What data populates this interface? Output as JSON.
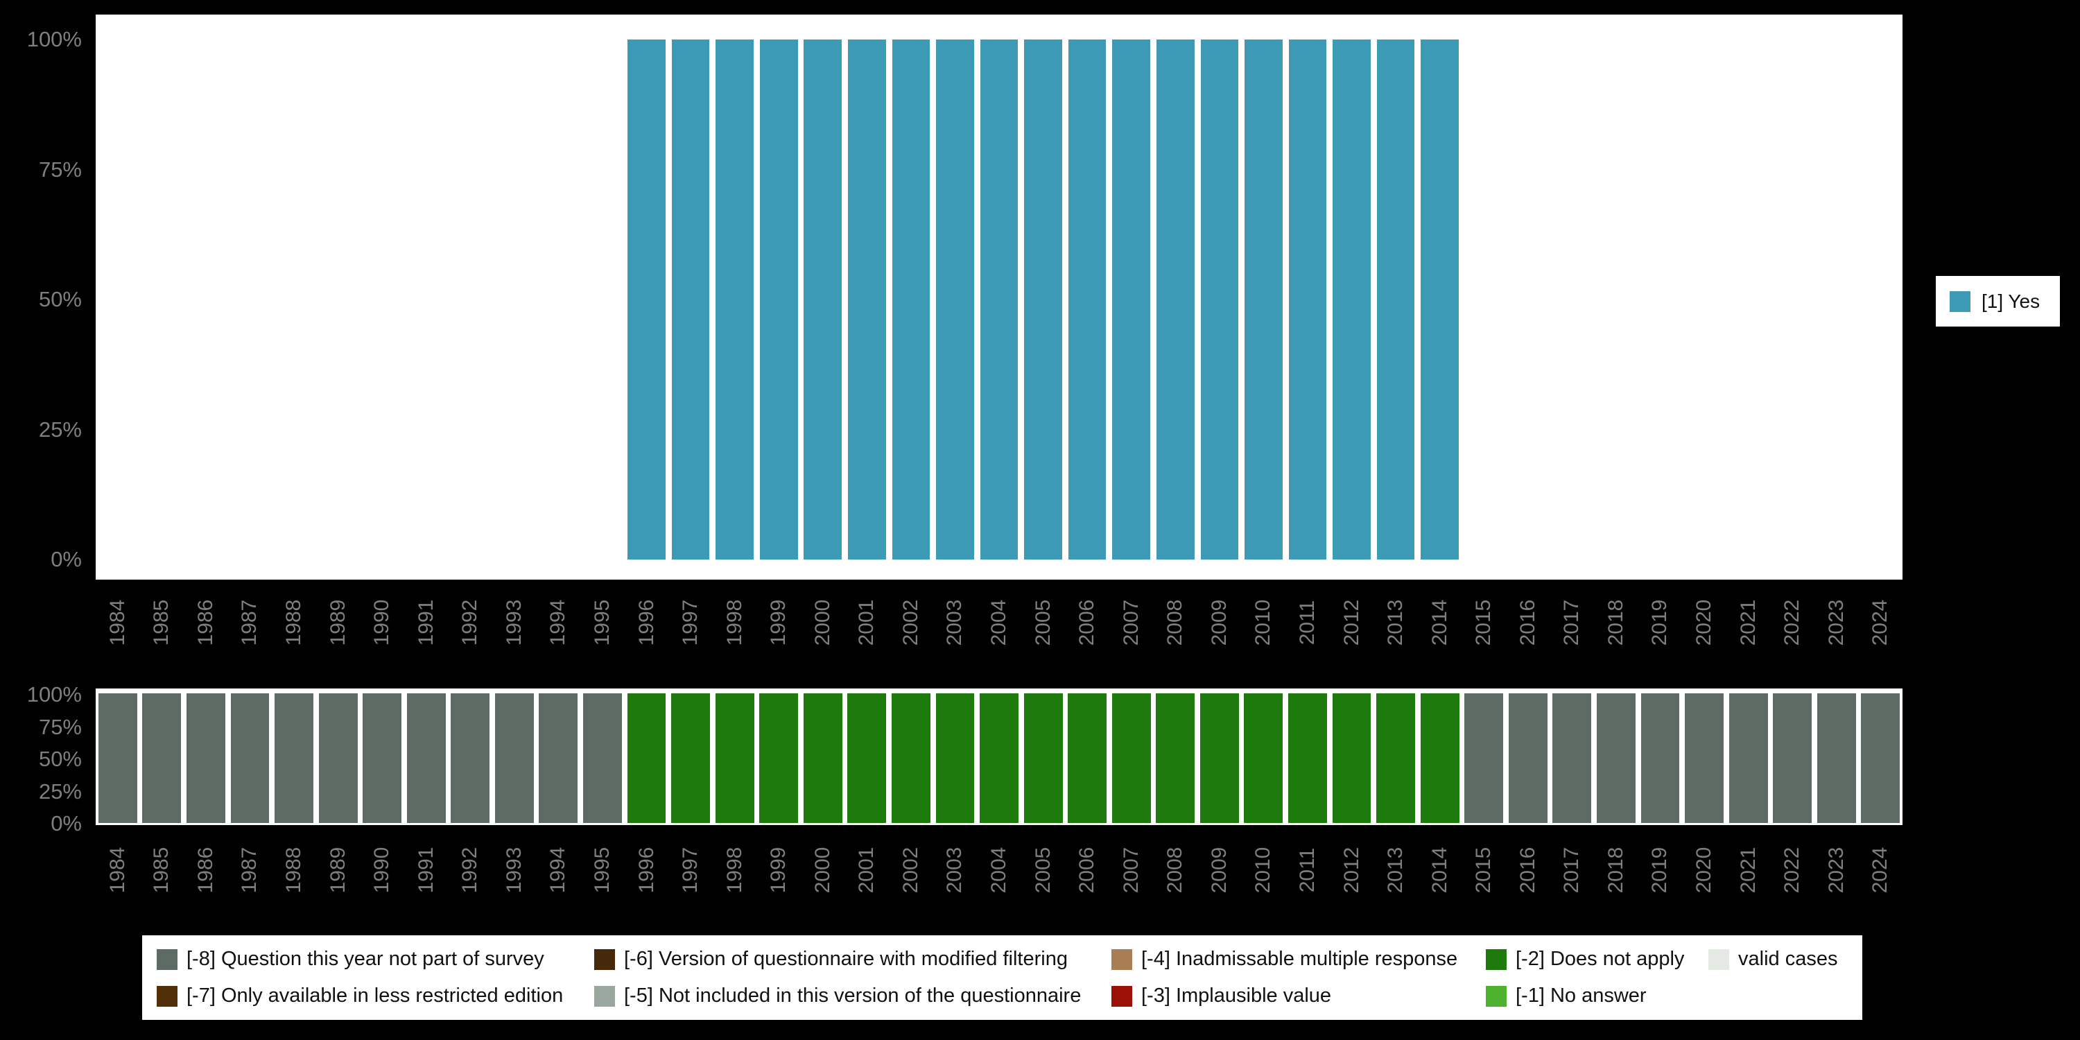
{
  "colors": {
    "background": "#000000",
    "plot_background": "#ffffff",
    "axis_text": "#7f7f7f",
    "legend_background": "#ffffff",
    "legend_text": "#111111"
  },
  "years": [
    "1984",
    "1985",
    "1986",
    "1987",
    "1988",
    "1989",
    "1990",
    "1991",
    "1992",
    "1993",
    "1994",
    "1995",
    "1996",
    "1997",
    "1998",
    "1999",
    "2000",
    "2001",
    "2002",
    "2003",
    "2004",
    "2005",
    "2006",
    "2007",
    "2008",
    "2009",
    "2010",
    "2011",
    "2012",
    "2013",
    "2014",
    "2015",
    "2016",
    "2017",
    "2018",
    "2019",
    "2020",
    "2021",
    "2022",
    "2023",
    "2024"
  ],
  "y_ticks": [
    "100%",
    "75%",
    "50%",
    "25%",
    "0%"
  ],
  "top_legend": {
    "label": "[1] Yes",
    "color": "#3d9ab7"
  },
  "chart_data": [
    {
      "type": "bar",
      "title": "",
      "xlabel": "",
      "ylabel": "",
      "ylim": [
        0,
        100
      ],
      "yticks": [
        "0%",
        "25%",
        "50%",
        "75%",
        "100%"
      ],
      "legend_position": "right",
      "categories": [
        "1984",
        "1985",
        "1986",
        "1987",
        "1988",
        "1989",
        "1990",
        "1991",
        "1992",
        "1993",
        "1994",
        "1995",
        "1996",
        "1997",
        "1998",
        "1999",
        "2000",
        "2001",
        "2002",
        "2003",
        "2004",
        "2005",
        "2006",
        "2007",
        "2008",
        "2009",
        "2010",
        "2011",
        "2012",
        "2013",
        "2014",
        "2015",
        "2016",
        "2017",
        "2018",
        "2019",
        "2020",
        "2021",
        "2022",
        "2023",
        "2024"
      ],
      "series": [
        {
          "name": "[1] Yes",
          "color": "#3d9ab7",
          "values": [
            0,
            0,
            0,
            0,
            0,
            0,
            0,
            0,
            0,
            0,
            0,
            0,
            100,
            100,
            100,
            100,
            100,
            100,
            100,
            100,
            100,
            100,
            100,
            100,
            100,
            100,
            100,
            100,
            100,
            100,
            100,
            0,
            0,
            0,
            0,
            0,
            0,
            0,
            0,
            0,
            0
          ]
        }
      ]
    },
    {
      "type": "bar",
      "title": "",
      "stacked": true,
      "xlabel": "",
      "ylabel": "",
      "ylim": [
        0,
        100
      ],
      "yticks": [
        "0%",
        "25%",
        "50%",
        "75%",
        "100%"
      ],
      "legend_position": "bottom",
      "categories": [
        "1984",
        "1985",
        "1986",
        "1987",
        "1988",
        "1989",
        "1990",
        "1991",
        "1992",
        "1993",
        "1994",
        "1995",
        "1996",
        "1997",
        "1998",
        "1999",
        "2000",
        "2001",
        "2002",
        "2003",
        "2004",
        "2005",
        "2006",
        "2007",
        "2008",
        "2009",
        "2010",
        "2011",
        "2012",
        "2013",
        "2014",
        "2015",
        "2016",
        "2017",
        "2018",
        "2019",
        "2020",
        "2021",
        "2022",
        "2023",
        "2024"
      ],
      "series": [
        {
          "name": "[-8] Question this year not part of survey",
          "color": "#5d6b64",
          "values": [
            100,
            100,
            100,
            100,
            100,
            100,
            100,
            100,
            100,
            100,
            100,
            100,
            0,
            0,
            0,
            0,
            0,
            0,
            0,
            0,
            0,
            0,
            0,
            0,
            0,
            0,
            0,
            0,
            0,
            0,
            0,
            100,
            100,
            100,
            100,
            100,
            100,
            100,
            100,
            100,
            100
          ]
        },
        {
          "name": "[-2] Does not apply",
          "color": "#1f7a0d",
          "values": [
            0,
            0,
            0,
            0,
            0,
            0,
            0,
            0,
            0,
            0,
            0,
            0,
            100,
            100,
            100,
            100,
            100,
            100,
            100,
            100,
            100,
            100,
            100,
            100,
            100,
            100,
            100,
            100,
            100,
            100,
            100,
            0,
            0,
            0,
            0,
            0,
            0,
            0,
            0,
            0,
            0
          ]
        }
      ]
    }
  ],
  "missing_legend": {
    "rows": [
      [
        {
          "label": "[-8] Question this year not part of survey",
          "color": "#5d6b64"
        },
        {
          "label": "[-6] Version of questionnaire with modified filtering",
          "color": "#46290b"
        },
        {
          "label": "[-4] Inadmissable multiple response",
          "color": "#a87e52"
        },
        {
          "label": "[-2] Does not apply",
          "color": "#1f7a0d"
        },
        {
          "label": "valid cases",
          "color": "#e4e9e4"
        }
      ],
      [
        {
          "label": "[-7] Only available in less restricted edition",
          "color": "#512f08"
        },
        {
          "label": "[-5] Not included in this version of the questionnaire",
          "color": "#9aa79e"
        },
        {
          "label": "[-3] Implausible value",
          "color": "#9c1105"
        },
        {
          "label": "[-1] No answer",
          "color": "#4db32e"
        }
      ]
    ]
  }
}
